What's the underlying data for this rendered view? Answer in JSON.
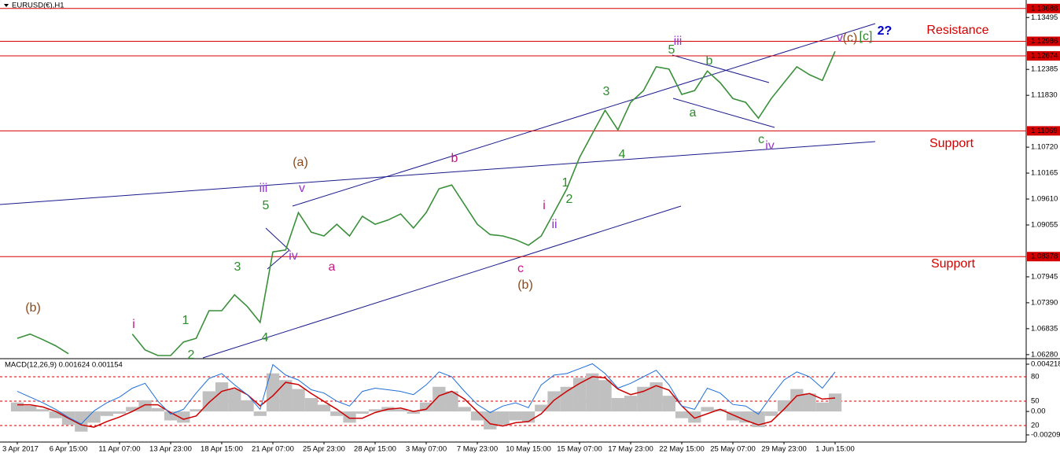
{
  "chart_data": {
    "type": "line",
    "title": "EURUSD(€),H1",
    "categories": [
      "3 Apr 2017",
      null,
      null,
      null,
      "6 Apr 15:00",
      null,
      null,
      null,
      "11 Apr 07:00",
      null,
      null,
      null,
      "13 Apr 23:00",
      null,
      null,
      null,
      "18 Apr 15:00",
      null,
      null,
      null,
      "21 Apr 07:00",
      null,
      null,
      null,
      "25 Apr 23:00",
      null,
      null,
      null,
      "28 Apr 15:00",
      null,
      null,
      null,
      "3 May 07:00",
      null,
      null,
      null,
      "7 May 23:00",
      null,
      null,
      null,
      "10 May 15:00",
      null,
      null,
      null,
      "15 May 07:00",
      null,
      null,
      null,
      "17 May 23:00",
      null,
      null,
      null,
      "22 May 15:00",
      null,
      null,
      null,
      "25 May 07:00",
      null,
      null,
      null,
      "29 May 23:00",
      null,
      null,
      null,
      "1 Jun 15:00"
    ],
    "series": [
      {
        "color": "#3a8f3a",
        "values": [
          1.0663,
          1.0672,
          1.066,
          1.0647,
          1.063,
          null,
          null,
          null,
          null,
          1.0672,
          1.0638,
          1.0626,
          1.0626,
          1.0655,
          1.0663,
          1.0722,
          1.0722,
          1.0756,
          1.0731,
          1.0697,
          1.0848,
          1.0852,
          1.0932,
          1.089,
          1.0882,
          1.0907,
          1.0882,
          1.0924,
          1.0907,
          1.0916,
          1.0929,
          1.0899,
          1.0932,
          1.0983,
          1.0991,
          1.0949,
          1.0907,
          1.0885,
          1.0882,
          1.0874,
          1.0862,
          1.0882,
          1.0932,
          1.0983,
          1.105,
          1.1101,
          1.1151,
          1.1109,
          1.1168,
          1.1193,
          1.1244,
          1.1239,
          1.1185,
          1.1193,
          1.1235,
          1.121,
          1.1176,
          1.1168,
          1.1134,
          1.1176,
          1.121,
          1.1244,
          1.1227,
          1.1215,
          1.1277
        ]
      }
    ],
    "ylim": [
      1.0621,
      1.1387
    ],
    "yticks": [
      1.13495,
      1.12385,
      {
        "value": 1.1183,
        "label": "1.11830"
      },
      {
        "value": 1.1072,
        "label": "1.10720"
      },
      1.10165,
      {
        "value": 1.0961,
        "label": "1.09610"
      },
      1.09055,
      1.07945,
      {
        "value": 1.0739,
        "label": "1.07390"
      },
      1.06835,
      {
        "value": 1.0628,
        "label": "1.06280"
      }
    ],
    "levels": [
      1.13688,
      1.12986,
      1.12674,
      1.11069,
      1.08378
    ],
    "level_color": "#d40000",
    "annotations": [
      {
        "text": "(b)",
        "color": "#8b4a1c"
      },
      {
        "text": "i",
        "color": "#c71585"
      },
      {
        "text": "1",
        "color": "#2e8b2e"
      },
      {
        "text": "2",
        "color": "#2e8b2e"
      },
      {
        "text": "3",
        "color": "#2e8b2e"
      },
      {
        "text": "4",
        "color": "#2e8b2e"
      },
      {
        "text": "5",
        "color": "#2e8b2e"
      },
      {
        "text": "iii",
        "color": "#9932cc"
      },
      {
        "text": "iv",
        "color": "#9932cc"
      },
      {
        "text": "v",
        "color": "#9932cc"
      },
      {
        "text": "(a)",
        "color": "#8b4a1c"
      },
      {
        "text": "a",
        "color": "#c71585"
      },
      {
        "text": "b",
        "color": "#c71585"
      },
      {
        "text": "c",
        "color": "#c71585"
      },
      {
        "text": "(b)",
        "color": "#8b4a1c"
      },
      {
        "text": "i",
        "color": "#c71585"
      },
      {
        "text": "ii",
        "color": "#9932cc"
      },
      {
        "text": "1",
        "color": "#2e8b2e"
      },
      {
        "text": "2",
        "color": "#2e8b2e"
      },
      {
        "text": "3",
        "color": "#2e8b2e"
      },
      {
        "text": "4",
        "color": "#2e8b2e"
      },
      {
        "text": "5",
        "color": "#2e8b2e"
      },
      {
        "text": "iii",
        "color": "#9932cc"
      },
      {
        "text": "b",
        "color": "#2e8b2e"
      },
      {
        "text": "a",
        "color": "#2e8b2e"
      },
      {
        "text": "c",
        "color": "#2e8b2e"
      },
      {
        "text": "iv",
        "color": "#9932cc"
      },
      {
        "text": "v",
        "color": "#9932cc"
      },
      {
        "text": "(c)",
        "color": "#8b4a1c"
      },
      {
        "text": "[c]",
        "color": "#2e8b2e"
      },
      {
        "text": "2?",
        "color": "#0000cd"
      },
      {
        "text": "Resistance",
        "color": "#d40000"
      },
      {
        "text": "Support",
        "color": "#d40000"
      },
      {
        "text": "Support",
        "color": "#d40000"
      }
    ],
    "indicator": {
      "type": "bar",
      "title": "MACD(12,26,9) 0.001624 0.001154",
      "series": [
        {
          "type": "bar",
          "color": "#c0c0c0",
          "values": [
            0.0008,
            0.0005,
            0.0002,
            -0.0006,
            -0.0012,
            -0.0018,
            -0.001,
            -0.0004,
            -0.0002,
            0.0004,
            0.001,
            0.0003,
            -0.0008,
            -0.001,
            0.0002,
            0.0018,
            0.0026,
            0.002,
            0.001,
            -0.0004,
            0.0034,
            0.0028,
            0.002,
            0.0012,
            0.0006,
            -0.0004,
            -0.001,
            -0.0002,
            0.0002,
            0.0004,
            0.0002,
            -0.0002,
            0.0008,
            0.0022,
            0.0018,
            0.0004,
            -0.0008,
            -0.0016,
            -0.0012,
            -0.0008,
            -0.001,
            0.0006,
            0.0018,
            0.0022,
            0.003,
            0.0034,
            0.0028,
            0.0012,
            0.0014,
            0.0022,
            0.0026,
            0.0014,
            -0.0006,
            -0.001,
            0.0004,
            0.0002,
            -0.0008,
            -0.001,
            -0.0014,
            -0.0004,
            0.001,
            0.002,
            0.0016,
            0.0008,
            0.0016
          ]
        },
        {
          "type": "line",
          "color": "#cc0000",
          "values": [
            0.0006,
            0.0006,
            0.0004,
            0.0,
            -0.0006,
            -0.0012,
            -0.0014,
            -0.0009,
            -0.0005,
            0.0,
            0.0006,
            0.0006,
            -0.0001,
            -0.0007,
            -0.0004,
            0.0008,
            0.0018,
            0.0021,
            0.0015,
            0.0005,
            0.0014,
            0.0026,
            0.0024,
            0.0016,
            0.0009,
            0.0002,
            -0.0006,
            -0.0006,
            -0.0001,
            0.0002,
            0.0003,
            0.0,
            0.0002,
            0.0014,
            0.0018,
            0.0011,
            0.0,
            -0.0011,
            -0.0013,
            -0.001,
            -0.0009,
            -0.0002,
            0.001,
            0.0018,
            0.0025,
            0.0031,
            0.003,
            0.002,
            0.0015,
            0.0018,
            0.0023,
            0.0019,
            0.0005,
            -0.0006,
            -0.0002,
            0.0002,
            -0.0003,
            -0.0008,
            -0.0012,
            -0.0009,
            0.0002,
            0.0014,
            0.0016,
            0.0011,
            0.0012
          ]
        },
        {
          "type": "line",
          "color": "#1e6fd9",
          "axis": "y2",
          "values": [
            62,
            55,
            48,
            40,
            30,
            22,
            38,
            48,
            55,
            66,
            72,
            50,
            34,
            40,
            60,
            78,
            84,
            70,
            58,
            40,
            95,
            82,
            76,
            64,
            60,
            50,
            44,
            62,
            66,
            64,
            62,
            58,
            70,
            86,
            80,
            62,
            46,
            36,
            44,
            48,
            42,
            70,
            82,
            84,
            90,
            96,
            84,
            66,
            72,
            80,
            88,
            70,
            44,
            40,
            66,
            60,
            46,
            44,
            34,
            56,
            76,
            86,
            80,
            66,
            86
          ]
        }
      ],
      "ylim": [
        -0.00273,
        0.00464
      ],
      "yticks": [
        0.004218,
        {
          "value": 0,
          "label": "0.00"
        },
        -0.002094
      ],
      "y2lim": [
        -0.3,
        101.3
      ],
      "y2ticks": [
        80,
        50,
        20
      ]
    }
  }
}
